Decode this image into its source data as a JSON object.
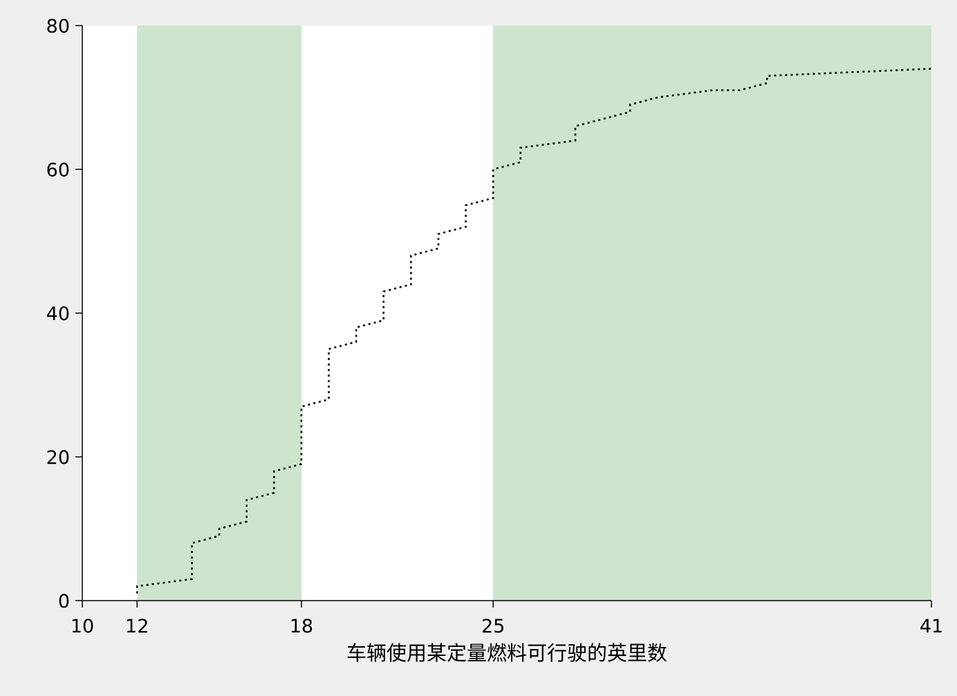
{
  "chart_data": {
    "type": "line",
    "title": "",
    "xlabel": "车辆使用某定量燃料可行驶的英里数",
    "ylabel": "",
    "xlim": [
      10,
      41
    ],
    "ylim": [
      0,
      80
    ],
    "xticks": [
      10,
      12,
      18,
      25,
      41
    ],
    "yticks": [
      0,
      20,
      40,
      60,
      80
    ],
    "grid": false,
    "line_style": "dotted",
    "colors": {
      "band": "#cce5cc",
      "plot_bg": "#ffffff",
      "page_bg": "#efefef",
      "line": "#000000"
    },
    "bands": [
      {
        "from": 12,
        "to": 18
      },
      {
        "from": 25,
        "to": 41
      }
    ],
    "series": [
      {
        "x": [
          12,
          12,
          13,
          14,
          14,
          15,
          15,
          16,
          16,
          17,
          17,
          18,
          18,
          19,
          19,
          20,
          20,
          21,
          21,
          22,
          22,
          23,
          23,
          24,
          24,
          25,
          25,
          26,
          26,
          28,
          28,
          30,
          30,
          31,
          32,
          33,
          34,
          35,
          35,
          41
        ],
        "y": [
          1,
          2,
          2.5,
          3,
          8,
          9,
          10,
          11,
          14,
          15,
          18,
          19,
          27,
          28,
          35,
          36,
          38,
          39,
          43,
          44,
          48,
          49,
          51,
          52,
          55,
          56,
          60,
          61,
          63,
          64,
          66,
          68,
          69,
          70,
          70.5,
          71,
          71,
          72,
          73,
          74
        ]
      }
    ]
  }
}
